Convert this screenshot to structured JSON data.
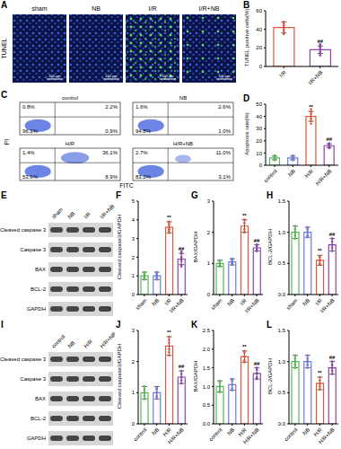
{
  "chart_data": [
    {
      "panel": "B",
      "type": "bar",
      "y_label": "TUNEL positive cells(%)",
      "categories": [
        "I/R",
        "I/R+NB"
      ],
      "values": [
        42,
        18
      ],
      "errors": [
        6,
        4
      ],
      "points": [
        [
          35,
          48,
          40,
          46,
          38,
          44
        ],
        [
          14,
          22,
          16,
          20,
          12,
          24
        ]
      ],
      "colors": [
        "#e4553b",
        "#8e44ad"
      ],
      "significance": [
        null,
        "##"
      ],
      "ylim": [
        0,
        60
      ],
      "yticks": [
        0,
        20,
        40,
        60
      ]
    },
    {
      "panel": "D",
      "type": "bar",
      "y_label": "Apoptosis rate(%)",
      "categories": [
        "control",
        "NB",
        "H/R",
        "H/R+NB"
      ],
      "values": [
        6,
        6,
        40,
        16
      ],
      "errors": [
        1.5,
        1.5,
        4,
        1.5
      ],
      "points": [
        [
          4,
          5,
          7,
          6,
          8,
          5
        ],
        [
          5,
          7,
          6,
          4,
          8,
          6
        ],
        [
          36,
          44,
          38,
          42,
          46,
          34
        ],
        [
          15,
          17,
          16,
          14,
          18,
          16
        ]
      ],
      "colors": [
        "#5cb85c",
        "#6f7bd8",
        "#e4553b",
        "#8e44ad"
      ],
      "significance": [
        null,
        null,
        "**",
        "##"
      ],
      "ylim": [
        0,
        50
      ],
      "yticks": [
        0,
        10,
        20,
        30,
        40,
        50
      ]
    },
    {
      "panel": "F",
      "type": "bar",
      "y_label": "Cleaved caspase3/GAPDH",
      "categories": [
        "sham",
        "NB",
        "I/R",
        "I/R+NB"
      ],
      "values": [
        1.0,
        1.0,
        3.6,
        1.9
      ],
      "errors": [
        0.2,
        0.2,
        0.3,
        0.3
      ],
      "points": [
        [
          0.8,
          1.1,
          1.2,
          0.9,
          1.0,
          0.9
        ],
        [
          0.9,
          1.1,
          0.8,
          1.2,
          1.0,
          1.0
        ],
        [
          3.3,
          3.9,
          3.5,
          3.8,
          3.4,
          3.7
        ],
        [
          1.6,
          2.2,
          1.8,
          2.0,
          1.5,
          2.3
        ]
      ],
      "colors": [
        "#5cb85c",
        "#6f7bd8",
        "#e4553b",
        "#8e44ad"
      ],
      "significance": [
        null,
        null,
        "**",
        "##"
      ],
      "ylim": [
        0,
        5
      ],
      "yticks": [
        0,
        1,
        2,
        3,
        4,
        5
      ]
    },
    {
      "panel": "G",
      "type": "bar",
      "y_label": "BAX/GAPDH",
      "categories": [
        "sham",
        "NB",
        "I/R",
        "I/R+NB"
      ],
      "values": [
        1.0,
        1.05,
        2.2,
        1.5
      ],
      "errors": [
        0.1,
        0.1,
        0.2,
        0.1
      ],
      "points": [
        [
          0.9,
          1.1,
          1.0,
          0.95,
          1.05,
          1.0
        ],
        [
          1.0,
          1.1,
          0.95,
          1.15,
          1.05,
          1.05
        ],
        [
          2.0,
          2.4,
          2.1,
          2.3,
          2.0,
          2.4
        ],
        [
          1.4,
          1.6,
          1.45,
          1.55,
          1.4,
          1.6
        ]
      ],
      "colors": [
        "#5cb85c",
        "#6f7bd8",
        "#e4553b",
        "#8e44ad"
      ],
      "significance": [
        null,
        null,
        "**",
        "##"
      ],
      "ylim": [
        0,
        3
      ],
      "yticks": [
        0,
        1,
        2,
        3
      ]
    },
    {
      "panel": "H",
      "type": "bar",
      "y_label": "BCL-2/GAPDH",
      "categories": [
        "sham",
        "NB",
        "I/R",
        "I/R+NB"
      ],
      "values": [
        1.0,
        1.0,
        0.55,
        0.8
      ],
      "errors": [
        0.1,
        0.08,
        0.08,
        0.1
      ],
      "points": [
        [
          0.9,
          1.1,
          1.0,
          0.95,
          1.05,
          1.0
        ],
        [
          0.95,
          1.05,
          0.92,
          1.08,
          1.0,
          1.0
        ],
        [
          0.5,
          0.6,
          0.48,
          0.62,
          0.55,
          0.55
        ],
        [
          0.7,
          0.9,
          0.75,
          0.85,
          0.8,
          0.8
        ]
      ],
      "colors": [
        "#5cb85c",
        "#6f7bd8",
        "#e4553b",
        "#8e44ad"
      ],
      "significance": [
        null,
        null,
        "**",
        "##"
      ],
      "ylim": [
        0,
        1.5
      ],
      "yticks": [
        {
          "value": 0,
          "label": "0.0"
        },
        0.5,
        {
          "value": 1,
          "label": "1.0"
        },
        1.5
      ]
    },
    {
      "panel": "J",
      "type": "bar",
      "y_label": "Cleaved caspase3/GAPDH",
      "categories": [
        "control",
        "NB",
        "H/R",
        "H/R+NB"
      ],
      "values": [
        1.0,
        1.0,
        2.5,
        1.5
      ],
      "errors": [
        0.2,
        0.2,
        0.3,
        0.2
      ],
      "points": [
        [
          0.8,
          1.2,
          0.9,
          1.1,
          1.0,
          1.0
        ],
        [
          0.85,
          1.15,
          0.9,
          1.1,
          1.0,
          1.0
        ],
        [
          2.2,
          2.8,
          2.3,
          2.7,
          2.4,
          2.6
        ],
        [
          1.3,
          1.7,
          1.4,
          1.6,
          1.5,
          1.5
        ]
      ],
      "colors": [
        "#5cb85c",
        "#6f7bd8",
        "#e4553b",
        "#8e44ad"
      ],
      "significance": [
        null,
        null,
        "**",
        "##"
      ],
      "ylim": [
        0,
        3
      ],
      "yticks": [
        0,
        1,
        2,
        3
      ]
    },
    {
      "panel": "K",
      "type": "bar",
      "y_label": "BAX/GAPDH",
      "categories": [
        "control",
        "NB",
        "H/R",
        "H/R+NB"
      ],
      "values": [
        1.0,
        1.05,
        1.8,
        1.35
      ],
      "errors": [
        0.15,
        0.15,
        0.15,
        0.15
      ],
      "points": [
        [
          0.85,
          1.15,
          0.9,
          1.1,
          1.0,
          1.0
        ],
        [
          0.9,
          1.2,
          0.95,
          1.15,
          1.05,
          1.05
        ],
        [
          1.65,
          1.95,
          1.7,
          1.9,
          1.8,
          1.8
        ],
        [
          1.2,
          1.5,
          1.25,
          1.45,
          1.35,
          1.35
        ]
      ],
      "colors": [
        "#5cb85c",
        "#6f7bd8",
        "#e4553b",
        "#8e44ad"
      ],
      "significance": [
        null,
        null,
        "**",
        "##"
      ],
      "ylim": [
        0,
        2.5
      ],
      "yticks": [
        {
          "value": 0,
          "label": "0.0"
        },
        0.5,
        {
          "value": 1,
          "label": "1.0"
        },
        1.5,
        {
          "value": 2,
          "label": "2.0"
        },
        2.5
      ]
    },
    {
      "panel": "L",
      "type": "bar",
      "y_label": "BCL-2/GAPDH",
      "categories": [
        "control",
        "NB",
        "H/R",
        "H/R+NB"
      ],
      "values": [
        1.0,
        1.0,
        0.65,
        0.9
      ],
      "errors": [
        0.1,
        0.1,
        0.1,
        0.1
      ],
      "points": [
        [
          0.9,
          1.1,
          0.95,
          1.05,
          1.0,
          1.0
        ],
        [
          0.9,
          1.1,
          0.95,
          1.05,
          1.0,
          1.0
        ],
        [
          0.55,
          0.75,
          0.6,
          0.7,
          0.65,
          0.65
        ],
        [
          0.8,
          1.0,
          0.85,
          0.95,
          0.9,
          0.9
        ]
      ],
      "colors": [
        "#5cb85c",
        "#6f7bd8",
        "#e4553b",
        "#8e44ad"
      ],
      "significance": [
        null,
        null,
        "**",
        "##"
      ],
      "ylim": [
        0,
        1.5
      ],
      "yticks": [
        {
          "value": 0,
          "label": "0.0"
        },
        0.5,
        {
          "value": 1,
          "label": "1.0"
        },
        1.5
      ]
    }
  ],
  "panel_A": {
    "panel": "A",
    "row_label": "TUNEL",
    "columns": [
      "sham",
      "NB",
      "I/R",
      "I/R+NB"
    ],
    "scale_bar": "100 μm"
  },
  "panel_C": {
    "panel": "C",
    "x_label": "FITC",
    "y_label": "PI",
    "plots": [
      {
        "title": "control",
        "quadrants": {
          "upper_left": "0.8%",
          "upper_right": "2.2%",
          "lower_left": "96.1%",
          "lower_right": "0.9%"
        }
      },
      {
        "title": "NB",
        "quadrants": {
          "upper_left": "1.6%",
          "upper_right": "2.6%",
          "lower_left": "94.8%",
          "lower_right": "1.0%"
        }
      },
      {
        "title": "H/R",
        "quadrants": {
          "upper_left": "1.4%",
          "upper_right": "36.1%",
          "lower_left": "53.6%",
          "lower_right": "8.9%"
        }
      },
      {
        "title": "H/R+NB",
        "quadrants": {
          "upper_left": "2.7%",
          "upper_right": "11.0%",
          "lower_left": "83.2%",
          "lower_right": "3.1%"
        }
      }
    ]
  },
  "panel_E": {
    "panel": "E",
    "lanes": [
      "sham",
      "NB",
      "I/R",
      "I/R+NB"
    ],
    "rows": [
      "Cleaved caspase 3",
      "Caspase 3",
      "BAX",
      "BCL-2",
      "GAPDH"
    ]
  },
  "panel_I": {
    "panel": "I",
    "lanes": [
      "control",
      "NB",
      "H/R",
      "H/R+NB"
    ],
    "rows": [
      "Cleaved caspase 3",
      "Caspase 3",
      "BAX",
      "BCL-2",
      "GAPDH"
    ]
  }
}
